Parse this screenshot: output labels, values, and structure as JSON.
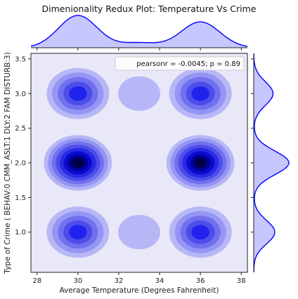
{
  "chart_data": {
    "type": "kde-joint",
    "title": "Dimenionality Redux Plot: Temperature Vs Crime",
    "xlabel": "Average Temperature (Degrees Fahrenheit)",
    "ylabel": "Type of Crime ( BEHAV:0 CMM_ASLT:1 DLY:2 FAM DISTURB:3)",
    "xlim": [
      27.7,
      38.3
    ],
    "ylim": [
      0.42,
      3.58
    ],
    "x_ticks": [
      "28",
      "30",
      "32",
      "34",
      "36",
      "38"
    ],
    "y_ticks": [
      "1.0",
      "1.5",
      "2.0",
      "2.5",
      "3.0",
      "3.5"
    ],
    "annotation": "pearsonr = -0.0045; p = 0.89",
    "color": "#0000ff",
    "background": "#e8e8f8",
    "clusters": [
      {
        "x": 30,
        "y": 3.0,
        "weight": 0.5
      },
      {
        "x": 33,
        "y": 3.0,
        "weight": 0.15
      },
      {
        "x": 36,
        "y": 3.0,
        "weight": 0.5
      },
      {
        "x": 30,
        "y": 2.0,
        "weight": 1.0
      },
      {
        "x": 36,
        "y": 2.0,
        "weight": 1.0
      },
      {
        "x": 30,
        "y": 1.0,
        "weight": 0.6
      },
      {
        "x": 33,
        "y": 1.0,
        "weight": 0.15
      },
      {
        "x": 36,
        "y": 1.0,
        "weight": 0.6
      }
    ],
    "x_marginal": {
      "modes": [
        30,
        33,
        36
      ],
      "weights": [
        1.0,
        0.15,
        0.8
      ]
    },
    "y_marginal": {
      "modes": [
        1.0,
        2.0,
        3.0
      ],
      "weights": [
        0.6,
        1.0,
        0.55
      ]
    }
  }
}
